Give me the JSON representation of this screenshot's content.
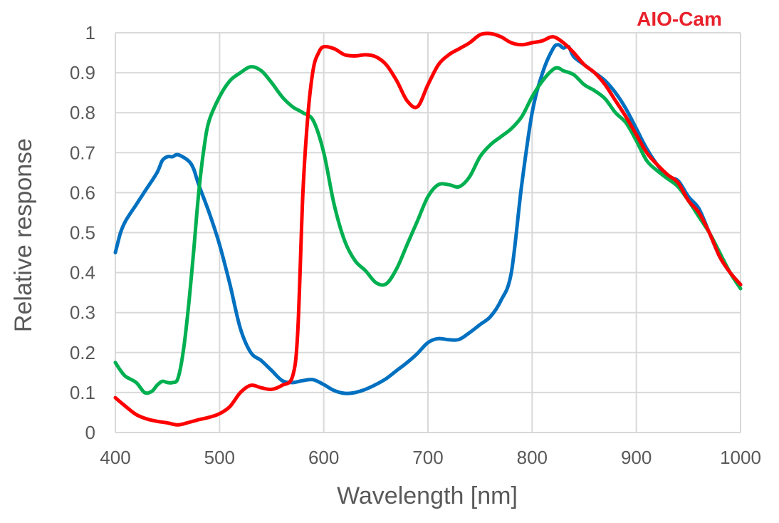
{
  "brand_label": "AIO-Cam",
  "colors": {
    "blue": "#0070c0",
    "green": "#00b050",
    "red": "#ff0000",
    "grid": "#d9d9d9",
    "text": "#595959",
    "brand": "#e8212b"
  },
  "chart_data": {
    "type": "line",
    "title": "",
    "xlabel": "Wavelength [nm]",
    "ylabel": "Relative response",
    "xlim": [
      400,
      1000
    ],
    "ylim": [
      0,
      1
    ],
    "xticks": [
      "400",
      "500",
      "600",
      "700",
      "800",
      "900",
      "1000"
    ],
    "yticks": [
      "0",
      "0.1",
      "0.2",
      "0.3",
      "0.4",
      "0.5",
      "0.6",
      "0.7",
      "0.8",
      "0.9",
      "1"
    ],
    "grid": true,
    "legend": "none",
    "series": [
      {
        "color": "#0070c0",
        "points": [
          [
            400,
            0.45
          ],
          [
            405,
            0.5
          ],
          [
            410,
            0.53
          ],
          [
            420,
            0.57
          ],
          [
            425,
            0.59
          ],
          [
            430,
            0.61
          ],
          [
            440,
            0.65
          ],
          [
            445,
            0.68
          ],
          [
            450,
            0.69
          ],
          [
            455,
            0.69
          ],
          [
            460,
            0.695
          ],
          [
            470,
            0.68
          ],
          [
            475,
            0.66
          ],
          [
            480,
            0.62
          ],
          [
            490,
            0.55
          ],
          [
            500,
            0.47
          ],
          [
            510,
            0.37
          ],
          [
            520,
            0.26
          ],
          [
            530,
            0.2
          ],
          [
            540,
            0.18
          ],
          [
            550,
            0.155
          ],
          [
            560,
            0.13
          ],
          [
            570,
            0.125
          ],
          [
            580,
            0.13
          ],
          [
            590,
            0.132
          ],
          [
            600,
            0.12
          ],
          [
            610,
            0.105
          ],
          [
            620,
            0.098
          ],
          [
            630,
            0.1
          ],
          [
            640,
            0.108
          ],
          [
            650,
            0.12
          ],
          [
            660,
            0.135
          ],
          [
            670,
            0.155
          ],
          [
            680,
            0.175
          ],
          [
            690,
            0.198
          ],
          [
            700,
            0.225
          ],
          [
            710,
            0.235
          ],
          [
            720,
            0.232
          ],
          [
            730,
            0.233
          ],
          [
            740,
            0.25
          ],
          [
            750,
            0.27
          ],
          [
            760,
            0.29
          ],
          [
            770,
            0.33
          ],
          [
            780,
            0.4
          ],
          [
            790,
            0.62
          ],
          [
            800,
            0.8
          ],
          [
            810,
            0.9
          ],
          [
            820,
            0.96
          ],
          [
            825,
            0.97
          ],
          [
            830,
            0.962
          ],
          [
            835,
            0.965
          ],
          [
            840,
            0.94
          ],
          [
            850,
            0.92
          ],
          [
            860,
            0.9
          ],
          [
            870,
            0.88
          ],
          [
            880,
            0.85
          ],
          [
            890,
            0.81
          ],
          [
            900,
            0.76
          ],
          [
            910,
            0.71
          ],
          [
            920,
            0.67
          ],
          [
            930,
            0.64
          ],
          [
            940,
            0.63
          ],
          [
            950,
            0.59
          ],
          [
            960,
            0.56
          ],
          [
            970,
            0.5
          ],
          [
            980,
            0.44
          ],
          [
            990,
            0.4
          ],
          [
            1000,
            0.37
          ]
        ]
      },
      {
        "color": "#00b050",
        "points": [
          [
            400,
            0.175
          ],
          [
            405,
            0.155
          ],
          [
            410,
            0.14
          ],
          [
            420,
            0.125
          ],
          [
            428,
            0.1
          ],
          [
            435,
            0.103
          ],
          [
            440,
            0.118
          ],
          [
            445,
            0.128
          ],
          [
            450,
            0.125
          ],
          [
            455,
            0.125
          ],
          [
            460,
            0.135
          ],
          [
            465,
            0.2
          ],
          [
            470,
            0.31
          ],
          [
            475,
            0.45
          ],
          [
            480,
            0.6
          ],
          [
            485,
            0.71
          ],
          [
            490,
            0.78
          ],
          [
            500,
            0.84
          ],
          [
            510,
            0.88
          ],
          [
            520,
            0.9
          ],
          [
            530,
            0.915
          ],
          [
            540,
            0.905
          ],
          [
            550,
            0.875
          ],
          [
            560,
            0.84
          ],
          [
            570,
            0.815
          ],
          [
            580,
            0.8
          ],
          [
            590,
            0.78
          ],
          [
            600,
            0.7
          ],
          [
            610,
            0.57
          ],
          [
            620,
            0.48
          ],
          [
            630,
            0.43
          ],
          [
            640,
            0.405
          ],
          [
            650,
            0.375
          ],
          [
            660,
            0.372
          ],
          [
            670,
            0.41
          ],
          [
            680,
            0.47
          ],
          [
            690,
            0.53
          ],
          [
            700,
            0.59
          ],
          [
            710,
            0.62
          ],
          [
            720,
            0.62
          ],
          [
            730,
            0.615
          ],
          [
            740,
            0.64
          ],
          [
            750,
            0.69
          ],
          [
            760,
            0.72
          ],
          [
            770,
            0.74
          ],
          [
            780,
            0.76
          ],
          [
            790,
            0.79
          ],
          [
            800,
            0.84
          ],
          [
            810,
            0.88
          ],
          [
            820,
            0.908
          ],
          [
            825,
            0.912
          ],
          [
            830,
            0.905
          ],
          [
            840,
            0.895
          ],
          [
            850,
            0.87
          ],
          [
            860,
            0.855
          ],
          [
            870,
            0.835
          ],
          [
            880,
            0.8
          ],
          [
            890,
            0.775
          ],
          [
            900,
            0.73
          ],
          [
            910,
            0.68
          ],
          [
            920,
            0.655
          ],
          [
            930,
            0.635
          ],
          [
            940,
            0.615
          ],
          [
            950,
            0.58
          ],
          [
            960,
            0.54
          ],
          [
            970,
            0.5
          ],
          [
            980,
            0.45
          ],
          [
            990,
            0.4
          ],
          [
            1000,
            0.36
          ]
        ]
      },
      {
        "color": "#ff0000",
        "points": [
          [
            400,
            0.087
          ],
          [
            410,
            0.065
          ],
          [
            420,
            0.045
          ],
          [
            430,
            0.034
          ],
          [
            440,
            0.028
          ],
          [
            450,
            0.024
          ],
          [
            460,
            0.019
          ],
          [
            470,
            0.025
          ],
          [
            480,
            0.032
          ],
          [
            490,
            0.038
          ],
          [
            500,
            0.047
          ],
          [
            510,
            0.065
          ],
          [
            520,
            0.1
          ],
          [
            530,
            0.118
          ],
          [
            540,
            0.112
          ],
          [
            550,
            0.108
          ],
          [
            560,
            0.118
          ],
          [
            570,
            0.14
          ],
          [
            575,
            0.25
          ],
          [
            580,
            0.6
          ],
          [
            585,
            0.8
          ],
          [
            590,
            0.91
          ],
          [
            595,
            0.95
          ],
          [
            600,
            0.965
          ],
          [
            610,
            0.96
          ],
          [
            620,
            0.945
          ],
          [
            630,
            0.942
          ],
          [
            640,
            0.945
          ],
          [
            650,
            0.94
          ],
          [
            660,
            0.92
          ],
          [
            670,
            0.88
          ],
          [
            680,
            0.83
          ],
          [
            690,
            0.815
          ],
          [
            700,
            0.87
          ],
          [
            710,
            0.92
          ],
          [
            720,
            0.945
          ],
          [
            730,
            0.96
          ],
          [
            740,
            0.975
          ],
          [
            750,
            0.995
          ],
          [
            760,
            0.998
          ],
          [
            770,
            0.99
          ],
          [
            780,
            0.975
          ],
          [
            790,
            0.97
          ],
          [
            800,
            0.975
          ],
          [
            810,
            0.98
          ],
          [
            820,
            0.99
          ],
          [
            830,
            0.975
          ],
          [
            840,
            0.95
          ],
          [
            850,
            0.92
          ],
          [
            860,
            0.9
          ],
          [
            870,
            0.87
          ],
          [
            880,
            0.83
          ],
          [
            890,
            0.79
          ],
          [
            900,
            0.745
          ],
          [
            910,
            0.7
          ],
          [
            920,
            0.67
          ],
          [
            930,
            0.645
          ],
          [
            940,
            0.625
          ],
          [
            950,
            0.58
          ],
          [
            960,
            0.55
          ],
          [
            970,
            0.5
          ],
          [
            980,
            0.44
          ],
          [
            990,
            0.4
          ],
          [
            1000,
            0.37
          ]
        ]
      }
    ]
  }
}
